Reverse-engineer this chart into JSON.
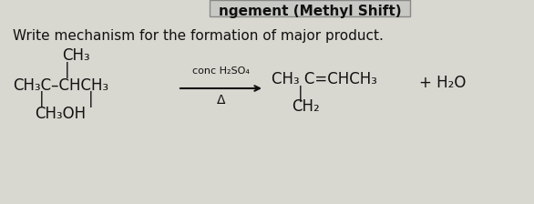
{
  "bg_color": "#d8d8d0",
  "paper_color": "#e8e8e2",
  "text_color": "#111111",
  "title": "ngement (Methyl Shift)",
  "subtitle": "Write mechanism for the formation of major product.",
  "subtitle_fontsize": 11,
  "title_fontsize": 11,
  "chem_fontsize": 12,
  "small_fontsize": 9,
  "arrow_above": "conc H₂SO₄",
  "arrow_below": "Δ",
  "plus_water": "+ H₂O",
  "figsize": [
    5.86,
    2.24
  ],
  "dpi": 100
}
